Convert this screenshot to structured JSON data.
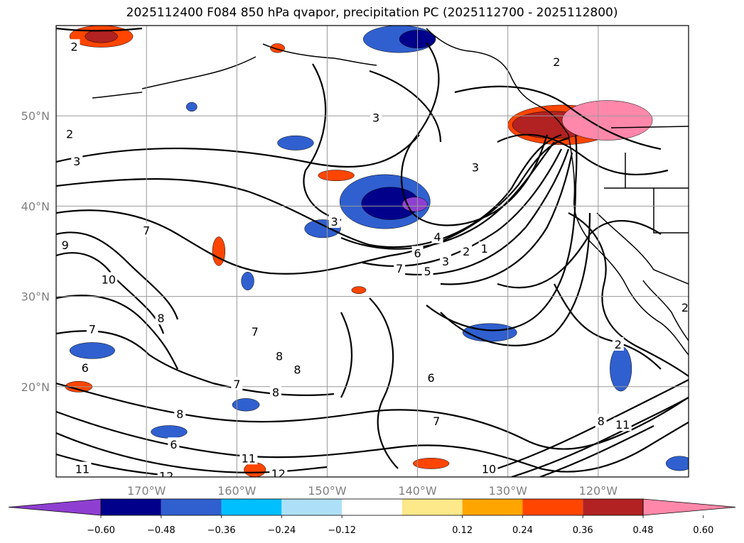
{
  "title": "2025112400 F084 850 hPa qvapor, precipitation PC (2025112700 - 2025112800)",
  "map": {
    "lon_range": [
      -180,
      -110
    ],
    "lat_range": [
      10,
      60
    ],
    "lat_ticks": [
      {
        "value": 50,
        "label": "50°N"
      },
      {
        "value": 40,
        "label": "40°N"
      },
      {
        "value": 30,
        "label": "30°N"
      },
      {
        "value": 20,
        "label": "20°N"
      }
    ],
    "lon_ticks": [
      {
        "value": -170,
        "label": "170°W"
      },
      {
        "value": -160,
        "label": "160°W"
      },
      {
        "value": -150,
        "label": "150°W"
      },
      {
        "value": -140,
        "label": "140°W"
      },
      {
        "value": -130,
        "label": "130°W"
      },
      {
        "value": -120,
        "label": "120°W"
      }
    ],
    "grid": true,
    "contour_labels": [
      {
        "text": "2",
        "lon": -178.0,
        "lat": 57.7
      },
      {
        "text": "2",
        "lon": -124.6,
        "lat": 56.0
      },
      {
        "text": "2",
        "lon": -178.5,
        "lat": 48.0
      },
      {
        "text": "3",
        "lon": -144.6,
        "lat": 49.8
      },
      {
        "text": "3",
        "lon": -177.7,
        "lat": 45.0
      },
      {
        "text": "3",
        "lon": -133.6,
        "lat": 44.3
      },
      {
        "text": "3",
        "lon": -149.2,
        "lat": 38.3
      },
      {
        "text": "4",
        "lon": -137.8,
        "lat": 36.6
      },
      {
        "text": "6",
        "lon": -140.0,
        "lat": 34.8
      },
      {
        "text": "5",
        "lon": -138.9,
        "lat": 32.8
      },
      {
        "text": "7",
        "lon": -142.0,
        "lat": 33.1
      },
      {
        "text": "3",
        "lon": -136.9,
        "lat": 33.9
      },
      {
        "text": "2",
        "lon": -134.6,
        "lat": 35.0
      },
      {
        "text": "1",
        "lon": -132.6,
        "lat": 35.3
      },
      {
        "text": "7",
        "lon": -170.0,
        "lat": 37.3
      },
      {
        "text": "9",
        "lon": -179.0,
        "lat": 35.7
      },
      {
        "text": "10",
        "lon": -174.2,
        "lat": 31.9
      },
      {
        "text": "8",
        "lon": -168.4,
        "lat": 27.6
      },
      {
        "text": "7",
        "lon": -176.0,
        "lat": 26.4
      },
      {
        "text": "6",
        "lon": -176.8,
        "lat": 22.1
      },
      {
        "text": "7",
        "lon": -158.0,
        "lat": 26.1
      },
      {
        "text": "8",
        "lon": -155.3,
        "lat": 23.4
      },
      {
        "text": "8",
        "lon": -153.3,
        "lat": 21.9
      },
      {
        "text": "7",
        "lon": -160.0,
        "lat": 20.3
      },
      {
        "text": "8",
        "lon": -155.7,
        "lat": 19.4
      },
      {
        "text": "6",
        "lon": -138.5,
        "lat": 21.0
      },
      {
        "text": "2",
        "lon": -117.8,
        "lat": 24.7
      },
      {
        "text": "7",
        "lon": -137.9,
        "lat": 16.2
      },
      {
        "text": "8",
        "lon": -166.3,
        "lat": 17.0
      },
      {
        "text": "6",
        "lon": -167.0,
        "lat": 13.6
      },
      {
        "text": "8",
        "lon": -119.7,
        "lat": 16.2
      },
      {
        "text": "11",
        "lon": -117.3,
        "lat": 15.8
      },
      {
        "text": "11",
        "lon": -177.1,
        "lat": 10.9
      },
      {
        "text": "12",
        "lon": -167.8,
        "lat": 10.1
      },
      {
        "text": "11",
        "lon": -158.7,
        "lat": 12.1
      },
      {
        "text": "12",
        "lon": -155.4,
        "lat": 10.4
      },
      {
        "text": "10",
        "lon": -132.1,
        "lat": 10.9
      },
      {
        "text": "2",
        "lon": -110.4,
        "lat": 28.8
      }
    ]
  },
  "colorbar": {
    "colors": [
      "#8e3fd1",
      "#00008b",
      "#3060cf",
      "#00bfff",
      "#ade0f8",
      "#ffffff",
      "#fde88a",
      "#ffa500",
      "#ff4500",
      "#b22222",
      "#ff88aa"
    ],
    "tick_labels": [
      "−0.60",
      "−0.48",
      "−0.36",
      "−0.24",
      "−0.12",
      "0.12",
      "0.24",
      "0.36",
      "0.48",
      "0.60"
    ],
    "extend": "both"
  },
  "precip_regions": [
    {
      "color": "#3060cf",
      "lon": -143.6,
      "lat": 40.5,
      "rlon": 5.0,
      "rlat": 3.0
    },
    {
      "color": "#00008b",
      "lon": -143.0,
      "lat": 40.3,
      "rlon": 3.2,
      "rlat": 1.8
    },
    {
      "color": "#8e3fd1",
      "lon": -140.3,
      "lat": 40.2,
      "rlon": 1.4,
      "rlat": 0.8
    },
    {
      "color": "#3060cf",
      "lon": -142.0,
      "lat": 58.5,
      "rlon": 4.0,
      "rlat": 1.5
    },
    {
      "color": "#00008b",
      "lon": -140.0,
      "lat": 58.5,
      "rlon": 2.0,
      "rlat": 1.0
    },
    {
      "color": "#ff4500",
      "lon": -175.0,
      "lat": 58.8,
      "rlon": 3.5,
      "rlat": 1.2
    },
    {
      "color": "#b22222",
      "lon": -175.0,
      "lat": 58.8,
      "rlon": 1.8,
      "rlat": 0.7
    },
    {
      "color": "#ff4500",
      "lon": -124.0,
      "lat": 49.0,
      "rlon": 6.0,
      "rlat": 2.2
    },
    {
      "color": "#b22222",
      "lon": -125.0,
      "lat": 49.0,
      "rlon": 4.5,
      "rlat": 1.5
    },
    {
      "color": "#ff88aa",
      "lon": -119.0,
      "lat": 49.5,
      "rlon": 5.0,
      "rlat": 2.2
    },
    {
      "color": "#ff4500",
      "lon": -149.0,
      "lat": 43.4,
      "rlon": 2.0,
      "rlat": 0.6
    },
    {
      "color": "#ff4500",
      "lon": -162.0,
      "lat": 35.0,
      "rlon": 0.7,
      "rlat": 1.6
    },
    {
      "color": "#3060cf",
      "lon": -150.5,
      "lat": 37.5,
      "rlon": 2.0,
      "rlat": 1.0
    },
    {
      "color": "#3060cf",
      "lon": -153.5,
      "lat": 47.0,
      "rlon": 2.0,
      "rlat": 0.8
    },
    {
      "color": "#3060cf",
      "lon": -132.0,
      "lat": 26.0,
      "rlon": 3.0,
      "rlat": 1.0
    },
    {
      "color": "#3060cf",
      "lon": -117.5,
      "lat": 22.0,
      "rlon": 1.2,
      "rlat": 2.5
    },
    {
      "color": "#3060cf",
      "lon": -176.0,
      "lat": 24.0,
      "rlon": 2.5,
      "rlat": 0.9
    },
    {
      "color": "#3060cf",
      "lon": -167.5,
      "lat": 15.0,
      "rlon": 2.0,
      "rlat": 0.7
    },
    {
      "color": "#3060cf",
      "lon": -159.0,
      "lat": 18.0,
      "rlon": 1.5,
      "rlat": 0.7
    },
    {
      "color": "#ff4500",
      "lon": -177.5,
      "lat": 20.0,
      "rlon": 1.5,
      "rlat": 0.6
    },
    {
      "color": "#ff4500",
      "lon": -158.0,
      "lat": 10.8,
      "rlon": 1.2,
      "rlat": 0.8
    },
    {
      "color": "#3060cf",
      "lon": -111.0,
      "lat": 11.5,
      "rlon": 1.5,
      "rlat": 0.8
    },
    {
      "color": "#ff4500",
      "lon": -138.5,
      "lat": 11.5,
      "rlon": 2.0,
      "rlat": 0.6
    },
    {
      "color": "#ff4500",
      "lon": -146.5,
      "lat": 30.7,
      "rlon": 0.8,
      "rlat": 0.4
    },
    {
      "color": "#3060cf",
      "lon": -158.8,
      "lat": 31.7,
      "rlon": 0.7,
      "rlat": 1.0
    },
    {
      "color": "#3060cf",
      "lon": -165.0,
      "lat": 51.0,
      "rlon": 0.6,
      "rlat": 0.5
    },
    {
      "color": "#ff4500",
      "lon": -155.5,
      "lat": 57.5,
      "rlon": 0.8,
      "rlat": 0.5
    }
  ]
}
